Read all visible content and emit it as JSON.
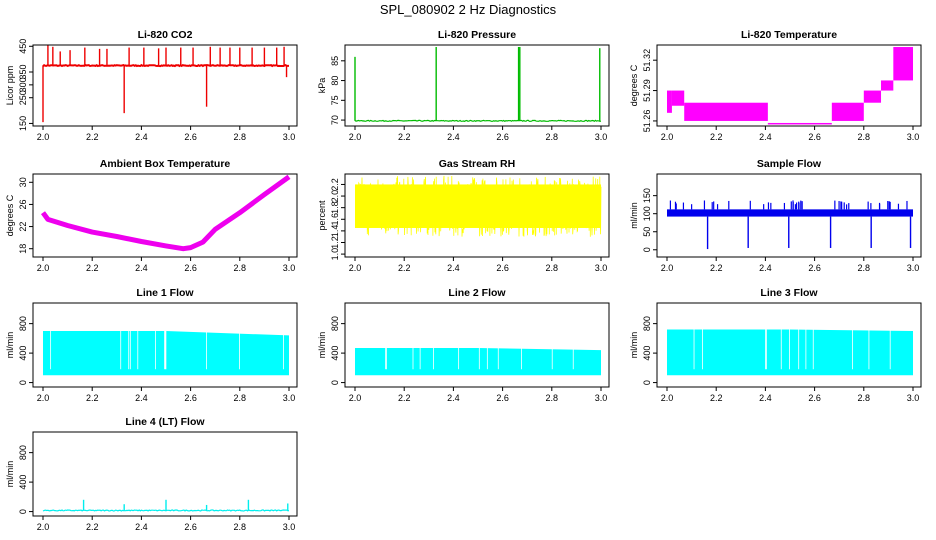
{
  "page": {
    "title": "SPL_080902  2 Hz Diagnostics"
  },
  "chart_data": [
    {
      "id": "co2",
      "type": "line",
      "title": "Li-820 CO2",
      "ylabel": "Licor ppm",
      "xlim": [
        2.0,
        3.0
      ],
      "ylim": [
        140,
        455
      ],
      "xticks": [
        2.0,
        2.2,
        2.4,
        2.6,
        2.8,
        3.0
      ],
      "yticks": [
        150,
        250,
        300,
        350,
        450
      ],
      "xtick_labels": [
        "2.0",
        "2.2",
        "2.4",
        "2.6",
        "2.8",
        "3.0"
      ],
      "ytick_labels": [
        "150",
        "250",
        "300",
        "350",
        "450"
      ],
      "color": "#ee0000",
      "baseline": 375,
      "events": [
        [
          2.0,
          155
        ],
        [
          2.02,
          455
        ],
        [
          2.04,
          448
        ],
        [
          2.07,
          430
        ],
        [
          2.11,
          435
        ],
        [
          2.17,
          445
        ],
        [
          2.23,
          440
        ],
        [
          2.26,
          440
        ],
        [
          2.33,
          190
        ],
        [
          2.35,
          445
        ],
        [
          2.41,
          445
        ],
        [
          2.47,
          442
        ],
        [
          2.5,
          445
        ],
        [
          2.56,
          445
        ],
        [
          2.61,
          445
        ],
        [
          2.665,
          215
        ],
        [
          2.68,
          448
        ],
        [
          2.72,
          445
        ],
        [
          2.76,
          445
        ],
        [
          2.8,
          445
        ],
        [
          2.85,
          445
        ],
        [
          2.9,
          445
        ],
        [
          2.95,
          445
        ],
        [
          2.98,
          448
        ],
        [
          2.99,
          330
        ]
      ]
    },
    {
      "id": "pressure",
      "type": "line",
      "title": "Li-820 Pressure",
      "ylabel": "kPa",
      "xlim": [
        2.0,
        3.0
      ],
      "ylim": [
        68.5,
        89
      ],
      "xticks": [
        2.0,
        2.2,
        2.4,
        2.6,
        2.8,
        3.0
      ],
      "yticks": [
        70,
        75,
        80,
        85
      ],
      "xtick_labels": [
        "2.0",
        "2.2",
        "2.4",
        "2.6",
        "2.8",
        "3.0"
      ],
      "ytick_labels": [
        "70",
        "75",
        "80",
        "85"
      ],
      "color": "#00bb00",
      "baseline": 69.8,
      "events": [
        [
          2.0,
          86
        ],
        [
          2.33,
          88.5
        ],
        [
          2.665,
          88.5
        ],
        [
          2.67,
          88.5
        ],
        [
          2.995,
          88.2
        ]
      ]
    },
    {
      "id": "temperature",
      "type": "line",
      "title": "Li-820 Temperature",
      "ylabel": "degrees C",
      "xlim": [
        2.0,
        3.0
      ],
      "ylim": [
        51.255,
        51.335
      ],
      "xticks": [
        2.0,
        2.2,
        2.4,
        2.6,
        2.8,
        3.0
      ],
      "yticks": [
        51.26,
        51.29,
        51.32
      ],
      "xtick_labels": [
        "2.0",
        "2.2",
        "2.4",
        "2.6",
        "2.8",
        "3.0"
      ],
      "ytick_labels": [
        "51.26",
        "51.29",
        "51.32"
      ],
      "color": "#ff00ff",
      "bands": [
        [
          2.0,
          2.02,
          51.268,
          51.29
        ],
        [
          2.02,
          2.07,
          51.275,
          51.29
        ],
        [
          2.07,
          2.41,
          51.26,
          51.278
        ],
        [
          2.41,
          2.67,
          51.257,
          51.258
        ],
        [
          2.67,
          2.8,
          51.26,
          51.278
        ],
        [
          2.8,
          2.87,
          51.278,
          51.29
        ],
        [
          2.87,
          2.92,
          51.29,
          51.3
        ],
        [
          2.92,
          3.0,
          51.3,
          51.333
        ]
      ]
    },
    {
      "id": "ambient",
      "type": "line",
      "title": "Ambient Box Temperature",
      "ylabel": "degrees C",
      "xlim": [
        2.0,
        3.0
      ],
      "ylim": [
        16.5,
        31.5
      ],
      "xticks": [
        2.0,
        2.2,
        2.4,
        2.6,
        2.8,
        3.0
      ],
      "yticks": [
        18,
        22,
        26,
        30
      ],
      "xtick_labels": [
        "2.0",
        "2.2",
        "2.4",
        "2.6",
        "2.8",
        "3.0"
      ],
      "ytick_labels": [
        "18",
        "22",
        "26",
        "30"
      ],
      "color": "#ee00ee",
      "points": [
        [
          2.0,
          24.5
        ],
        [
          2.02,
          23.3
        ],
        [
          2.1,
          22.2
        ],
        [
          2.2,
          21.0
        ],
        [
          2.3,
          20.2
        ],
        [
          2.4,
          19.3
        ],
        [
          2.5,
          18.5
        ],
        [
          2.57,
          18.0
        ],
        [
          2.6,
          18.2
        ],
        [
          2.65,
          19.2
        ],
        [
          2.7,
          21.5
        ],
        [
          2.8,
          24.5
        ],
        [
          2.9,
          27.8
        ],
        [
          3.0,
          31.0
        ]
      ]
    },
    {
      "id": "rh",
      "type": "line",
      "title": "Gas Stream RH",
      "ylabel": "percent",
      "xlim": [
        2.0,
        3.0
      ],
      "ylim": [
        0.95,
        2.38
      ],
      "xticks": [
        2.0,
        2.2,
        2.4,
        2.6,
        2.8,
        3.0
      ],
      "yticks": [
        1.0,
        1.2,
        1.4,
        1.6,
        1.8,
        2.0,
        2.2
      ],
      "xtick_labels": [
        "2.0",
        "2.2",
        "2.4",
        "2.6",
        "2.8",
        "3.0"
      ],
      "ytick_labels": [
        "1.0",
        "1.2",
        "1.4",
        "1.6",
        "1.8",
        "2.0",
        "2.2"
      ],
      "color": "#ffff00",
      "band": [
        1.05,
        2.35
      ]
    },
    {
      "id": "sample",
      "type": "line",
      "title": "Sample Flow",
      "ylabel": "ml/min",
      "xlim": [
        2.0,
        3.0
      ],
      "ylim": [
        -20,
        210
      ],
      "xticks": [
        2.0,
        2.2,
        2.4,
        2.6,
        2.8,
        3.0
      ],
      "yticks": [
        0,
        50,
        100,
        150
      ],
      "xtick_labels": [
        "2.0",
        "2.2",
        "2.4",
        "2.6",
        "2.8",
        "3.0"
      ],
      "ytick_labels": [
        "0",
        "50",
        "100",
        "150"
      ],
      "color": "#0000ee",
      "band": [
        92,
        112
      ],
      "events": [
        [
          2.165,
          2
        ],
        [
          2.33,
          5
        ],
        [
          2.495,
          5
        ],
        [
          2.665,
          5
        ],
        [
          2.83,
          5
        ],
        [
          2.99,
          5
        ]
      ]
    },
    {
      "id": "line1",
      "type": "line",
      "title": "Line 1 Flow",
      "ylabel": "ml/min",
      "xlim": [
        2.0,
        3.0
      ],
      "ylim": [
        -60,
        1080
      ],
      "xticks": [
        2.0,
        2.2,
        2.4,
        2.6,
        2.8,
        3.0
      ],
      "yticks": [
        0,
        400,
        800
      ],
      "xtick_labels": [
        "2.0",
        "2.2",
        "2.4",
        "2.6",
        "2.8",
        "3.0"
      ],
      "ytick_labels": [
        "0",
        "400",
        "800"
      ],
      "color": "#00ffff",
      "band": [
        100,
        700
      ],
      "top_end": 640
    },
    {
      "id": "line2",
      "type": "line",
      "title": "Line 2 Flow",
      "ylabel": "ml/min",
      "xlim": [
        2.0,
        3.0
      ],
      "ylim": [
        -60,
        1080
      ],
      "xticks": [
        2.0,
        2.2,
        2.4,
        2.6,
        2.8,
        3.0
      ],
      "yticks": [
        0,
        400,
        800
      ],
      "xtick_labels": [
        "2.0",
        "2.2",
        "2.4",
        "2.6",
        "2.8",
        "3.0"
      ],
      "ytick_labels": [
        "0",
        "400",
        "800"
      ],
      "color": "#00ffff",
      "band": [
        100,
        470
      ],
      "top_end": 440
    },
    {
      "id": "line3",
      "type": "line",
      "title": "Line 3 Flow",
      "ylabel": "ml/min",
      "xlim": [
        2.0,
        3.0
      ],
      "ylim": [
        -60,
        1080
      ],
      "xticks": [
        2.0,
        2.2,
        2.4,
        2.6,
        2.8,
        3.0
      ],
      "yticks": [
        0,
        400,
        800
      ],
      "xtick_labels": [
        "2.0",
        "2.2",
        "2.4",
        "2.6",
        "2.8",
        "3.0"
      ],
      "ytick_labels": [
        "0",
        "400",
        "800"
      ],
      "color": "#00ffff",
      "band": [
        100,
        720
      ],
      "top_end": 700
    },
    {
      "id": "line4",
      "type": "line",
      "title": "Line 4 (LT) Flow",
      "ylabel": "ml/min",
      "xlim": [
        2.0,
        3.0
      ],
      "ylim": [
        -60,
        1080
      ],
      "xticks": [
        2.0,
        2.2,
        2.4,
        2.6,
        2.8,
        3.0
      ],
      "yticks": [
        0,
        400,
        800
      ],
      "xtick_labels": [
        "2.0",
        "2.2",
        "2.4",
        "2.6",
        "2.8",
        "3.0"
      ],
      "ytick_labels": [
        "0",
        "400",
        "800"
      ],
      "color": "#00eeee",
      "baseline": 15,
      "events": [
        [
          2.165,
          160
        ],
        [
          2.33,
          100
        ],
        [
          2.5,
          160
        ],
        [
          2.665,
          90
        ],
        [
          2.835,
          160
        ],
        [
          2.995,
          110
        ]
      ]
    }
  ]
}
